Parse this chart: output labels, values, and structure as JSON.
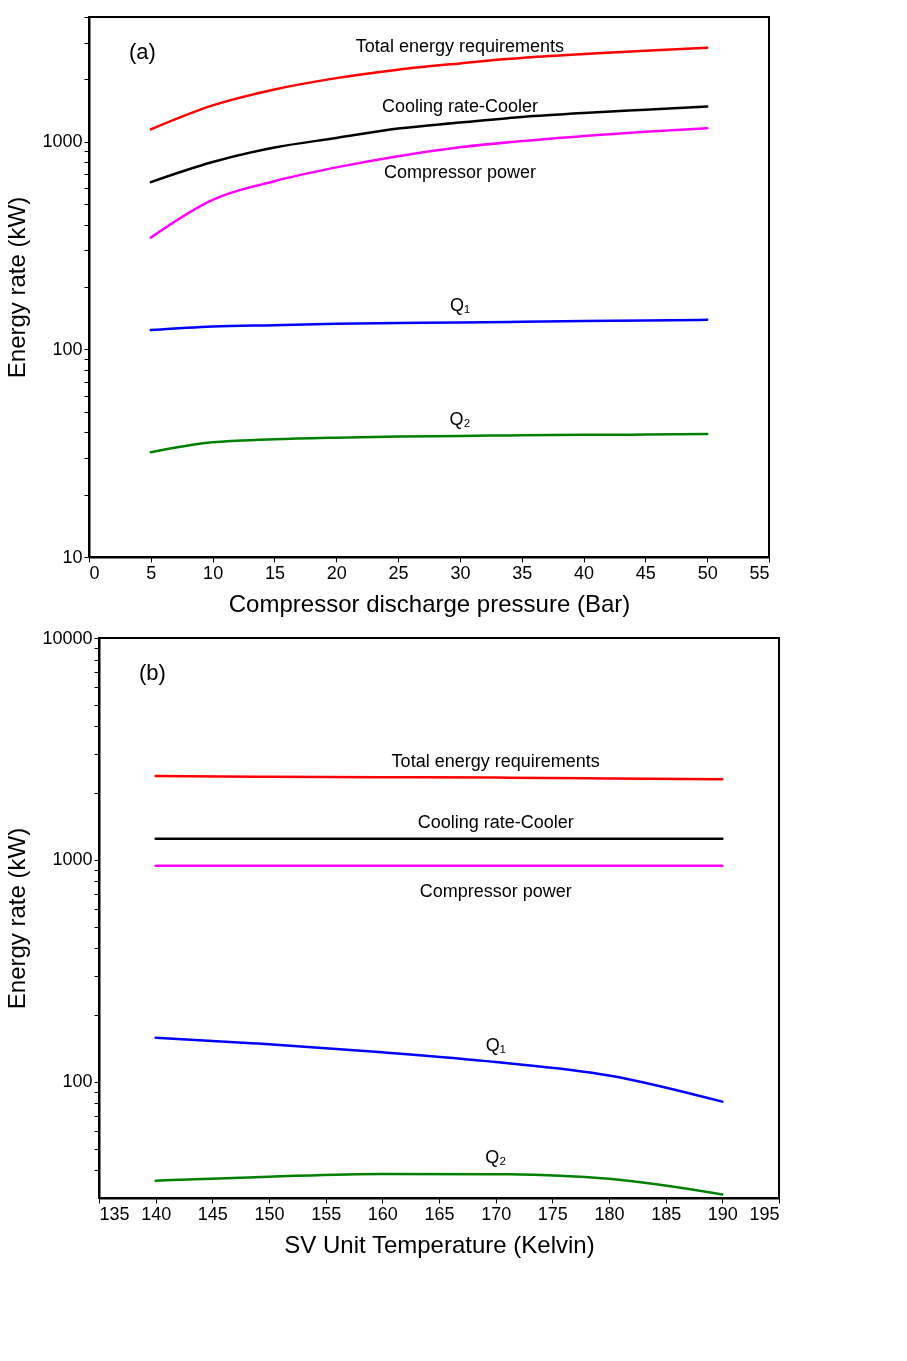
{
  "chart_data": [
    {
      "type": "line",
      "xlabel": "Compressor discharge pressure (Bar)",
      "ylabel": "Energy rate (kW)",
      "annotations": [
        "(a)"
      ],
      "log": true,
      "xlim": [
        0,
        55
      ],
      "xticks": [
        0,
        5,
        10,
        15,
        20,
        25,
        30,
        35,
        40,
        45,
        50,
        55
      ],
      "ylim": [
        10,
        4000
      ],
      "yticks": [
        10,
        {
          "value": 20,
          "label": null
        },
        {
          "value": 30,
          "label": null
        },
        {
          "value": 40,
          "label": null
        },
        {
          "value": 50,
          "label": null
        },
        {
          "value": 60,
          "label": null
        },
        {
          "value": 70,
          "label": null
        },
        {
          "value": 80,
          "label": null
        },
        {
          "value": 90,
          "label": null
        },
        100,
        {
          "value": 200,
          "label": null
        },
        {
          "value": 300,
          "label": null
        },
        {
          "value": 400,
          "label": null
        },
        {
          "value": 500,
          "label": null
        },
        {
          "value": 600,
          "label": null
        },
        {
          "value": 700,
          "label": null
        },
        {
          "value": 800,
          "label": null
        },
        {
          "value": 900,
          "label": null
        },
        1000,
        {
          "value": 2000,
          "label": null
        },
        {
          "value": 3000,
          "label": null
        },
        {
          "value": 4000,
          "label": null
        }
      ],
      "x": [
        5,
        10,
        15,
        20,
        25,
        30,
        35,
        40,
        45,
        50
      ],
      "series": [
        {
          "name": "Total energy requirements",
          "color": "#ff0000",
          "values": [
            1150,
            1500,
            1790,
            2030,
            2230,
            2390,
            2540,
            2650,
            2750,
            2840
          ]
        },
        {
          "name": "Cooling rate-Cooler",
          "color": "#000000",
          "values": [
            640,
            800,
            940,
            1045,
            1160,
            1240,
            1320,
            1380,
            1430,
            1480
          ]
        },
        {
          "name": "Compressor power",
          "color": "#ff00ff",
          "values": [
            346,
            526,
            647,
            754,
            854,
            942,
            1010,
            1067,
            1120,
            1164
          ]
        },
        {
          "name": "Q₁",
          "color": "#0000ff",
          "values": [
            124,
            129,
            131,
            133,
            134,
            135,
            136,
            137,
            138,
            139
          ]
        },
        {
          "name": "Q₂",
          "color": "#008000",
          "values": [
            32,
            35.7,
            36.9,
            37.6,
            38.1,
            38.3,
            38.6,
            38.8,
            38.9,
            39.1
          ]
        }
      ]
    },
    {
      "type": "line",
      "xlabel": "SV Unit Temperature (Kelvin)",
      "ylabel": "Energy rate (kW)",
      "annotations": [
        "(b)"
      ],
      "log": true,
      "xlim": [
        135,
        195
      ],
      "xticks": [
        135,
        140,
        145,
        150,
        155,
        160,
        165,
        170,
        175,
        180,
        185,
        190,
        195
      ],
      "ylim": [
        30,
        10000
      ],
      "yticks": [
        {
          "value": 40,
          "label": null
        },
        {
          "value": 50,
          "label": null
        },
        {
          "value": 60,
          "label": null
        },
        {
          "value": 70,
          "label": null
        },
        {
          "value": 80,
          "label": null
        },
        {
          "value": 90,
          "label": null
        },
        100,
        {
          "value": 200,
          "label": null
        },
        {
          "value": 300,
          "label": null
        },
        {
          "value": 400,
          "label": null
        },
        {
          "value": 500,
          "label": null
        },
        {
          "value": 600,
          "label": null
        },
        {
          "value": 700,
          "label": null
        },
        {
          "value": 800,
          "label": null
        },
        {
          "value": 900,
          "label": null
        },
        1000,
        {
          "value": 2000,
          "label": null
        },
        {
          "value": 3000,
          "label": null
        },
        {
          "value": 4000,
          "label": null
        },
        {
          "value": 5000,
          "label": null
        },
        {
          "value": 6000,
          "label": null
        },
        {
          "value": 7000,
          "label": null
        },
        {
          "value": 8000,
          "label": null
        },
        {
          "value": 9000,
          "label": null
        },
        10000
      ],
      "x": [
        140,
        150,
        160,
        170,
        180,
        190
      ],
      "series": [
        {
          "name": "Total energy requirements",
          "color": "#ff0000",
          "values": [
            2390,
            2370,
            2360,
            2350,
            2330,
            2310
          ]
        },
        {
          "name": "Cooling rate-Cooler",
          "color": "#000000",
          "values": [
            1246,
            1246,
            1246,
            1246,
            1246,
            1246
          ]
        },
        {
          "name": "Compressor power",
          "color": "#ff00ff",
          "values": [
            943,
            943,
            943,
            943,
            943,
            943
          ]
        },
        {
          "name": "Q₁",
          "color": "#0000ff",
          "values": [
            158,
            148,
            136,
            123,
            107,
            81.5
          ]
        },
        {
          "name": "Q₂",
          "color": "#008000",
          "values": [
            35.9,
            37.4,
            38.5,
            38.4,
            36.6,
            31.1
          ]
        }
      ]
    }
  ]
}
